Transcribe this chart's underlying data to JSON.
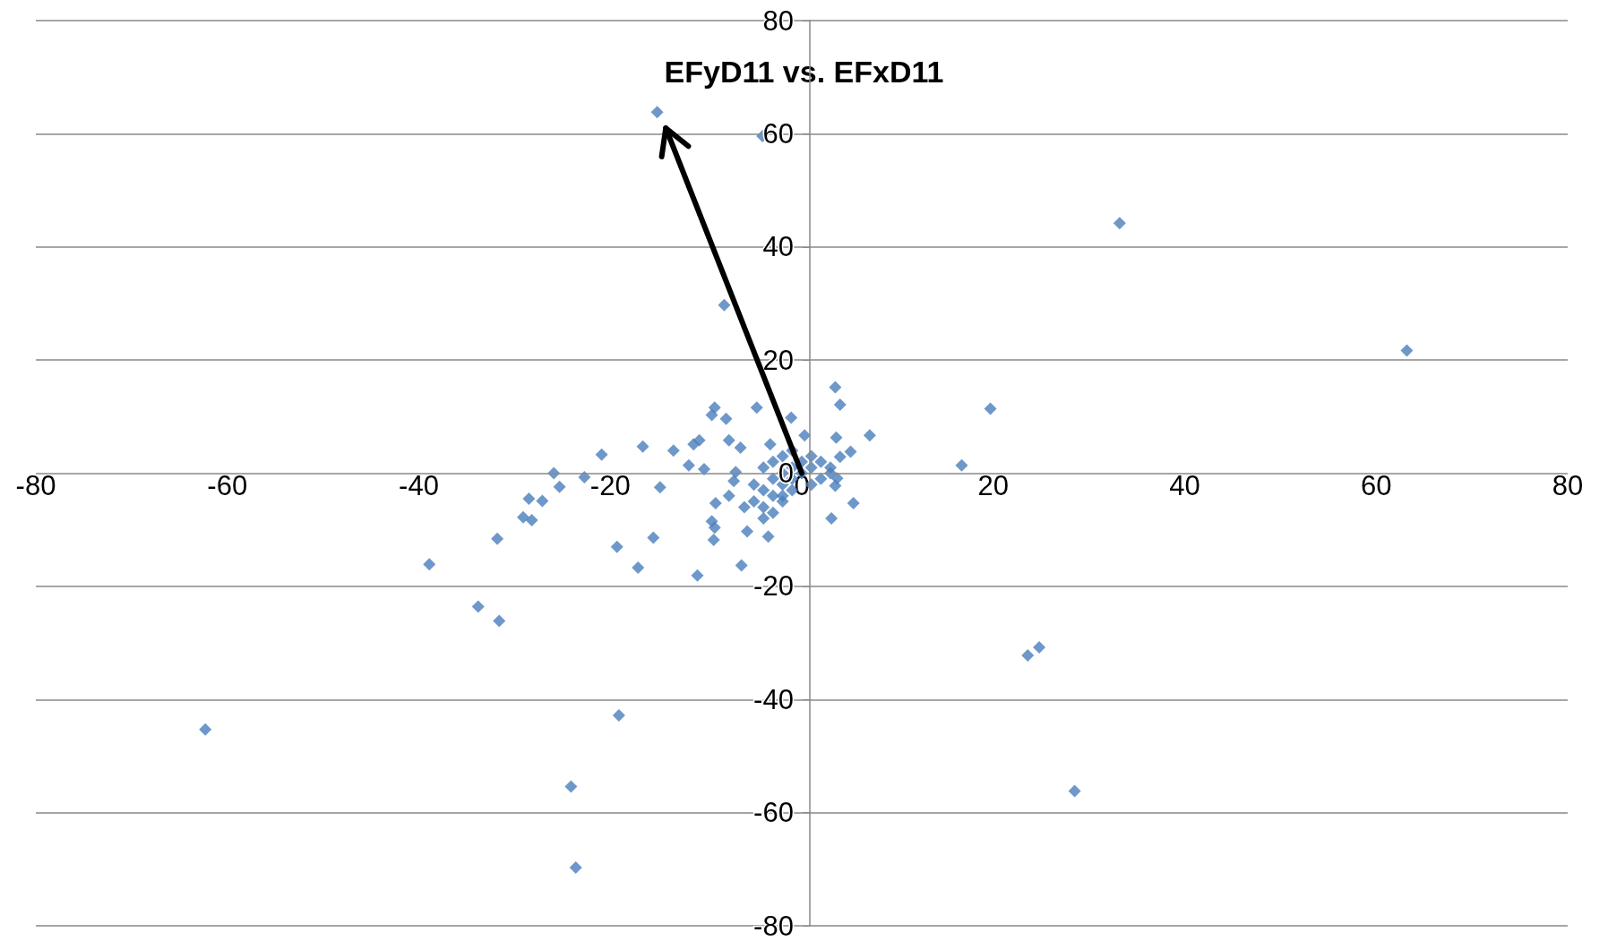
{
  "chart_data": {
    "type": "scatter",
    "title": "EFyD11 vs. EFxD11",
    "x": [
      -15.1,
      -4.1,
      33.2,
      63.2,
      -8.1,
      19.7,
      16.7,
      -62.3,
      -38.9,
      -33.8,
      -31.6,
      -31.8,
      -24.1,
      -23.6,
      -19.1,
      23.6,
      24.8,
      28.5,
      -29.1,
      -28.5,
      -28.2,
      -27.1,
      -25.9,
      -25.3,
      -22.7,
      -20.9,
      -19.3,
      -17.1,
      -16.6,
      -15.5,
      -14.8,
      -13.4,
      -11.8,
      -11.3,
      -10.7,
      -10.9,
      -10.2,
      -9.4,
      -9.1,
      -7.9,
      -7.6,
      -6.4,
      -9.4,
      -9.1,
      -9.2,
      -9.0,
      -7.6,
      -7.1,
      -6.9,
      -6.3,
      -5.7,
      -4.7,
      -3.5,
      -3.3,
      -1.1,
      0.3,
      3.5,
      4.0,
      7.1,
      5.1,
      3.6,
      3.1,
      5.4,
      3.7,
      3.5,
      4.0,
      -5,
      -4,
      -3,
      -4,
      -2,
      -3,
      -1,
      -2,
      -1,
      0,
      1,
      0,
      2,
      1,
      3,
      2,
      -1,
      -2,
      -3,
      -4,
      -2,
      -1,
      1,
      3,
      -5,
      -6,
      -4,
      -3,
      -2
    ],
    "values": [
      63.8,
      59.6,
      44.2,
      21.7,
      29.7,
      11.4,
      1.4,
      -45.3,
      -16.1,
      -23.6,
      -26.1,
      -11.6,
      -55.4,
      -69.7,
      -42.8,
      -32.2,
      -30.8,
      -56.2,
      -7.8,
      -4.5,
      -8.3,
      -4.9,
      0,
      -2.4,
      -0.7,
      3.3,
      -13.0,
      -16.7,
      4.7,
      -11.4,
      -2.5,
      4.0,
      1.4,
      5.1,
      5.8,
      -18.1,
      0.7,
      10.3,
      11.6,
      9.6,
      5.8,
      4.5,
      -8.5,
      -9.6,
      -11.8,
      -5.3,
      -4.0,
      -1.4,
      0.2,
      -16.3,
      -10.3,
      11.6,
      -11.2,
      5.1,
      9.8,
      6.7,
      15.2,
      12.1,
      6.7,
      3.8,
      6.3,
      -8.0,
      -5.3,
      -0.9,
      -2.2,
      2.9,
      -5,
      -6,
      -4,
      -3,
      -2,
      -1,
      -1,
      0,
      1,
      0,
      1,
      2,
      2,
      3,
      1,
      -1,
      -3,
      -4,
      2,
      1,
      3,
      4,
      -2,
      0,
      -2,
      -6,
      -8,
      -7,
      -5
    ],
    "color": "#4a7ebb",
    "marker": "diamond",
    "xlim": [
      -80,
      80
    ],
    "xticks": [
      -80,
      -60,
      -40,
      -20,
      0,
      20,
      40,
      60,
      80
    ],
    "ylim": [
      -80,
      80
    ],
    "yticks": [
      -80,
      -60,
      -40,
      -20,
      0,
      20,
      40,
      60,
      80
    ],
    "grid": "y"
  }
}
